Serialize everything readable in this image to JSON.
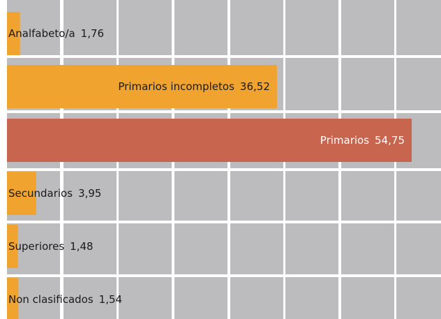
{
  "chart_data": {
    "type": "bar",
    "orientation": "horizontal",
    "categories": [
      "Analfabeto/a",
      "Primarios incompletos",
      "Primarios",
      "Secundarios",
      "Superiores",
      "Non clasificados"
    ],
    "values": [
      1.76,
      36.52,
      54.75,
      3.95,
      1.48,
      1.54
    ],
    "value_labels": [
      "1,76",
      "36,52",
      "54,75",
      "3,95",
      "1,48",
      "1,54"
    ],
    "colors": [
      "#f0a32f",
      "#f0a32f",
      "#c8654e",
      "#f0a32f",
      "#f0a32f",
      "#f0a32f"
    ]
  }
}
